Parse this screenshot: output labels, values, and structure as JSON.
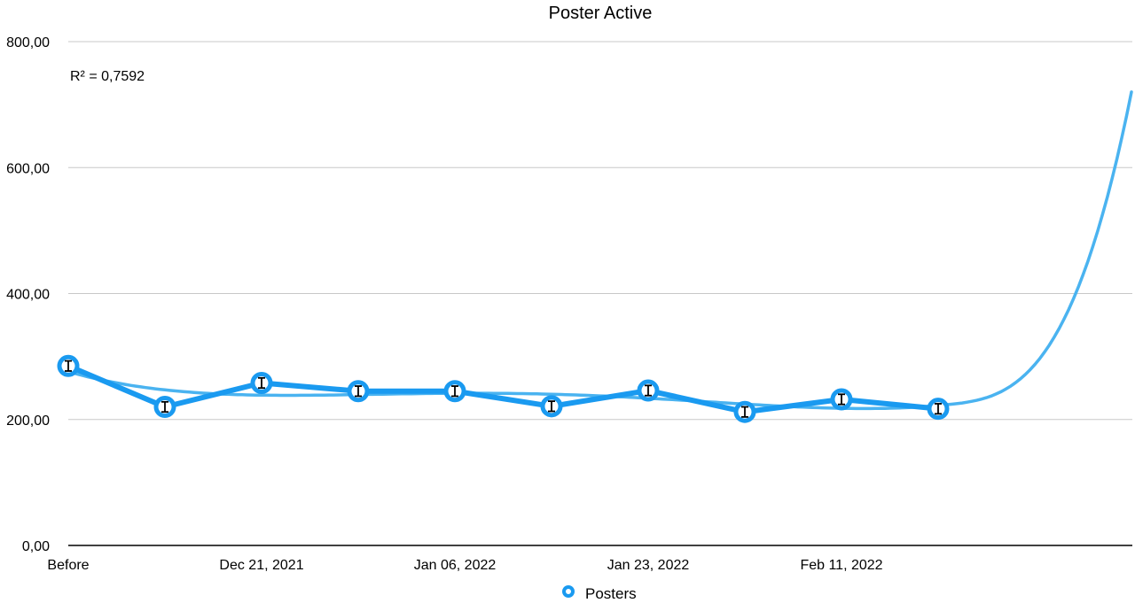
{
  "chart_data": {
    "type": "line",
    "title": "Poster Active",
    "xlabel": "",
    "ylabel": "",
    "categories": [
      "Before",
      "",
      "Dec 21, 2021",
      "",
      "Jan 06, 2022",
      "",
      "Jan 23, 2022",
      "",
      "Feb 11, 2022",
      ""
    ],
    "y_ticks": [
      "0,00",
      "200,00",
      "400,00",
      "600,00",
      "800,00"
    ],
    "ylim": [
      0,
      800
    ],
    "grid": "horizontal",
    "legend": {
      "position": "bottom",
      "entries": [
        "Posters"
      ]
    },
    "series": [
      {
        "name": "Posters",
        "values": [
          285,
          220,
          258,
          245,
          245,
          221,
          246,
          212,
          232,
          217
        ],
        "error": 8,
        "color": "#1a9af0",
        "marker": "hollow-circle"
      }
    ],
    "trendline": {
      "type": "polynomial",
      "r2_label": "R² = 0,7592",
      "color": "#4ab3f0",
      "x_extent": 11,
      "end_value": 720
    }
  }
}
